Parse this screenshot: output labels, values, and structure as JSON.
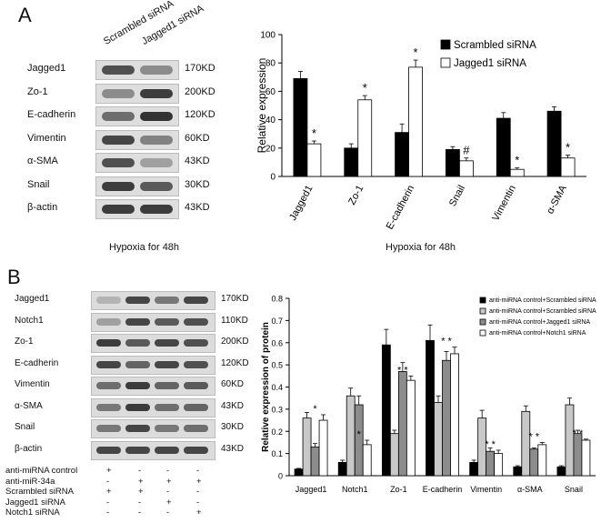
{
  "panelA": {
    "letter": "A",
    "blot_columns": [
      "Scrambled siRNA",
      "Jagged1 siRNA"
    ],
    "blot_rows": [
      {
        "name": "Jagged1",
        "kd": "170KD",
        "b1": 0.75,
        "b2": 0.45
      },
      {
        "name": "Zo-1",
        "kd": "200KD",
        "b1": 0.45,
        "b2": 0.85
      },
      {
        "name": "E-cadherin",
        "kd": "120KD",
        "b1": 0.6,
        "b2": 0.9
      },
      {
        "name": "Vimentin",
        "kd": "60KD",
        "b1": 0.8,
        "b2": 0.5
      },
      {
        "name": "α-SMA",
        "kd": "43KD",
        "b1": 0.75,
        "b2": 0.35
      },
      {
        "name": "Snail",
        "kd": "30KD",
        "b1": 0.85,
        "b2": 0.7
      },
      {
        "name": "β-actin",
        "kd": "43KD",
        "b1": 0.85,
        "b2": 0.85
      }
    ],
    "blot_caption": "Hypoxia for 48h",
    "chart_caption": "Hypoxia for 48h"
  },
  "panelB": {
    "letter": "B",
    "blot_rows": [
      {
        "name": "Jagged1",
        "kd": "170KD",
        "b": [
          0.25,
          0.8,
          0.55,
          0.8
        ]
      },
      {
        "name": "Notch1",
        "kd": "110KD",
        "b": [
          0.35,
          0.8,
          0.7,
          0.75
        ]
      },
      {
        "name": "Zo-1",
        "kd": "200KD",
        "b": [
          0.85,
          0.7,
          0.8,
          0.75
        ]
      },
      {
        "name": "E-cadherin",
        "kd": "120KD",
        "b": [
          0.8,
          0.65,
          0.8,
          0.75
        ]
      },
      {
        "name": "Vimentin",
        "kd": "60KD",
        "b": [
          0.6,
          0.85,
          0.65,
          0.7
        ]
      },
      {
        "name": "α-SMA",
        "kd": "43KD",
        "b": [
          0.55,
          0.85,
          0.6,
          0.65
        ]
      },
      {
        "name": "Snail",
        "kd": "30KD",
        "b": [
          0.55,
          0.8,
          0.55,
          0.6
        ]
      },
      {
        "name": "β-actin",
        "kd": "43KD",
        "b": [
          0.8,
          0.8,
          0.8,
          0.8
        ]
      }
    ],
    "treatment_rows": [
      {
        "label": "anti-miRNA control",
        "signs": [
          "+",
          "-",
          "-",
          "-"
        ]
      },
      {
        "label": "anti-miR-34a",
        "signs": [
          "-",
          "+",
          "+",
          "+"
        ]
      },
      {
        "label": "Scrambled siRNA",
        "signs": [
          "+",
          "+",
          "-",
          "-"
        ]
      },
      {
        "label": "Jagged1 siRNA",
        "signs": [
          "-",
          "-",
          "+",
          "-"
        ]
      },
      {
        "label": "Notch1 siRNA",
        "signs": [
          "-",
          "-",
          "-",
          "+"
        ]
      }
    ]
  },
  "chart_data": [
    {
      "type": "bar",
      "title": "",
      "xlabel": "",
      "ylabel": "Relative expression",
      "ylim": [
        0,
        100
      ],
      "yticks": [
        0,
        20,
        40,
        60,
        80,
        100
      ],
      "grid": false,
      "legend_position": "top-right",
      "categories": [
        "Jagged1",
        "Zo-1",
        "E-cadherin",
        "Snail",
        "Vimentin",
        "α-SMA"
      ],
      "series": [
        {
          "name": "Scrambled siRNA",
          "color": "#000000",
          "values": [
            69,
            20,
            31,
            19,
            41,
            46
          ],
          "errors": [
            5,
            3,
            6,
            2,
            4,
            3
          ]
        },
        {
          "name": "Jagged1 siRNA",
          "color": "#ffffff",
          "values": [
            23,
            54,
            77,
            11,
            5,
            13
          ],
          "errors": [
            2,
            3,
            5,
            2,
            1,
            2
          ]
        }
      ],
      "annotations": [
        "*",
        "*",
        "*",
        "#",
        "*",
        "*"
      ]
    },
    {
      "type": "bar",
      "title": "",
      "xlabel": "",
      "ylabel": "Relative expression of protein",
      "ylim": [
        0,
        0.8
      ],
      "yticks": [
        "0",
        "0.1",
        "0.2",
        "0.3",
        "0.4",
        "0.5",
        "0.6",
        "0.7",
        "0.8"
      ],
      "grid": false,
      "legend_position": "top-right",
      "categories": [
        "Jagged1",
        "Notch1",
        "Zo-1",
        "E-cadherin",
        "Vimentin",
        "α-SMA",
        "Snail"
      ],
      "series": [
        {
          "name": "anti-miRNA control+Scrambled siRNA",
          "color": "#000000",
          "values": [
            0.03,
            0.06,
            0.59,
            0.61,
            0.06,
            0.04,
            0.04
          ],
          "errors": [
            0.003,
            0.01,
            0.07,
            0.07,
            0.01,
            0.005,
            0.005
          ]
        },
        {
          "name": "anti-miRNA control+Scrambled siRNA",
          "color": "#c8c8c8",
          "values": [
            0.26,
            0.36,
            0.19,
            0.33,
            0.26,
            0.29,
            0.32
          ],
          "errors": [
            0.025,
            0.035,
            0.015,
            0.03,
            0.035,
            0.025,
            0.03
          ]
        },
        {
          "name": "anti-miRNA control+Jagged1 siRNA",
          "color": "#8c8c8c",
          "values": [
            0.13,
            0.32,
            0.47,
            0.52,
            0.11,
            0.12,
            0.19
          ],
          "errors": [
            0.015,
            0.04,
            0.04,
            0.04,
            0.015,
            0.005,
            0.015
          ]
        },
        {
          "name": "anti-miRNA control+Notch1 siRNA",
          "color": "#ffffff",
          "values": [
            0.25,
            0.14,
            0.43,
            0.55,
            0.1,
            0.14,
            0.16
          ],
          "errors": [
            0.025,
            0.02,
            0.02,
            0.03,
            0.015,
            0.01,
            0.005
          ]
        }
      ],
      "annotations": [
        "*",
        "*",
        "* *",
        "* *",
        "* *",
        "* *",
        "* *"
      ]
    }
  ]
}
